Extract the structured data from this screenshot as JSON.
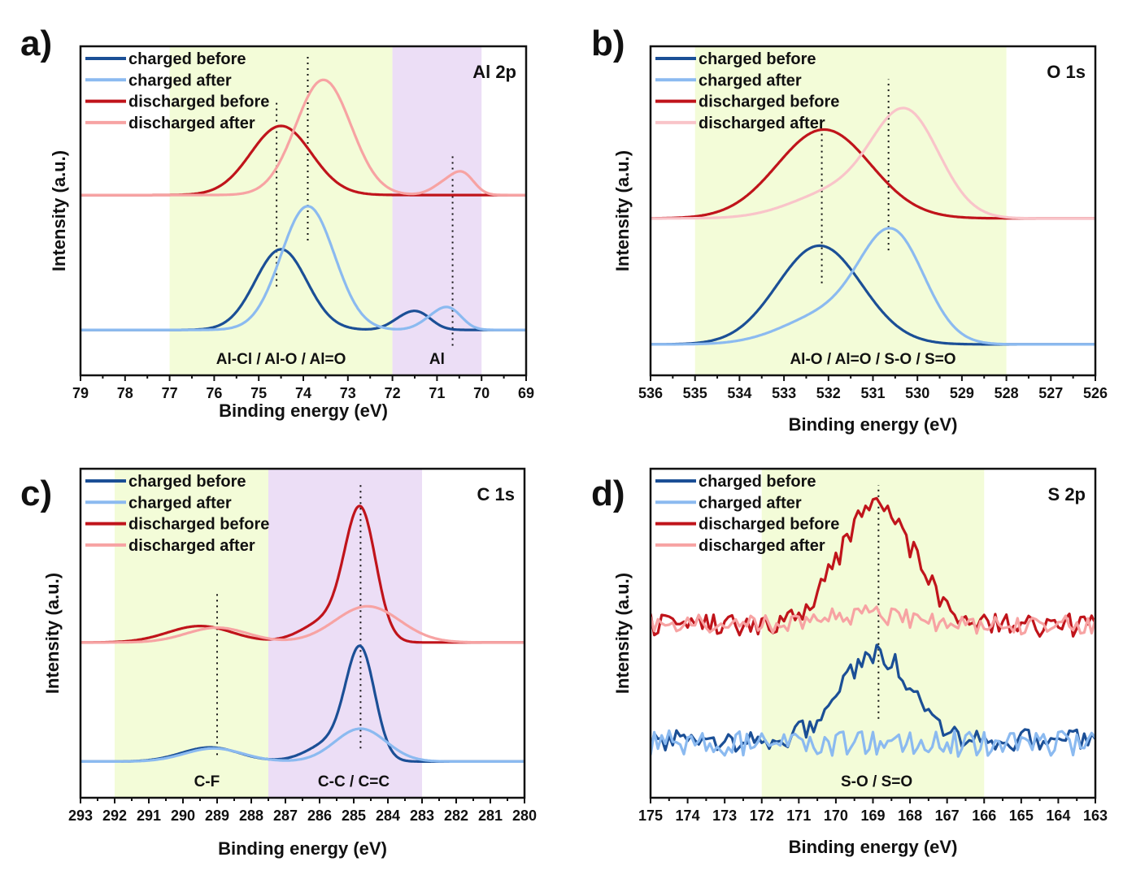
{
  "chart_data": [
    {
      "type": "line",
      "panel_label": "a)",
      "title": "Al 2p",
      "xlabel": "Binding energy (eV)",
      "ylabel": "Intensity (a.u.)",
      "xlim": [
        79,
        69
      ],
      "ylim": [
        0,
        100
      ],
      "xticks": [
        "79",
        "78",
        "77",
        "76",
        "75",
        "74",
        "73",
        "72",
        "71",
        "70",
        "69"
      ],
      "legend": {
        "placement": "top-left",
        "entries": [
          "charged before",
          "charged after",
          "discharged before",
          "discharged after"
        ]
      },
      "regions": [
        {
          "from": 77,
          "to": 72,
          "color": "#f3fcd8",
          "label": "Al-Cl / Al-O / Al=O",
          "label_x": 74.5
        },
        {
          "from": 72,
          "to": 70,
          "color": "#ecdef6",
          "label": "Al",
          "label_x": 71.0
        }
      ],
      "reference_lines": [
        {
          "x": 74.6,
          "y": [
            27,
            84
          ]
        },
        {
          "x": 73.9,
          "y": [
            41,
            97
          ]
        },
        {
          "x": 70.65,
          "y": [
            9,
            67
          ]
        }
      ],
      "series": [
        {
          "name": "charged before",
          "color": "#1b4f96",
          "baseline": 13.8,
          "peaks": [
            {
              "center": 74.5,
              "height": 24.5,
              "sigma": 0.58
            },
            {
              "center": 71.4,
              "height": 4.5,
              "sigma": 0.3
            },
            {
              "center": 71.8,
              "height": 2.5,
              "sigma": 0.3
            }
          ]
        },
        {
          "name": "charged after",
          "color": "#8bbaf0",
          "baseline": 13.8,
          "peaks": [
            {
              "center": 73.9,
              "height": 37.6,
              "sigma": 0.6
            },
            {
              "center": 70.7,
              "height": 5.5,
              "sigma": 0.28
            },
            {
              "center": 71.1,
              "height": 3,
              "sigma": 0.3
            }
          ]
        },
        {
          "name": "discharged before",
          "color": "#c0141b",
          "baseline": 54.8,
          "peaks": [
            {
              "center": 74.5,
              "height": 21,
              "sigma": 0.68
            }
          ]
        },
        {
          "name": "discharged after",
          "color": "#f7a3a3",
          "baseline": 54.8,
          "peaks": [
            {
              "center": 73.55,
              "height": 35,
              "sigma": 0.62
            },
            {
              "center": 70.4,
              "height": 5.5,
              "sigma": 0.25
            },
            {
              "center": 70.8,
              "height": 3.5,
              "sigma": 0.3
            }
          ]
        }
      ]
    },
    {
      "type": "line",
      "panel_label": "b)",
      "title": "O 1s",
      "xlabel": "Binding energy (eV)",
      "ylabel": "Intensity (a.u.)",
      "xlim": [
        536,
        526
      ],
      "ylim": [
        0,
        100
      ],
      "xticks": [
        "536",
        "535",
        "534",
        "533",
        "532",
        "531",
        "530",
        "529",
        "528",
        "527",
        "526"
      ],
      "legend": {
        "placement": "top-left",
        "entries": [
          "charged before",
          "charged after",
          "discharged before",
          "discharged after"
        ]
      },
      "regions": [
        {
          "from": 535,
          "to": 528,
          "color": "#f3fcd8",
          "label": "Al-O / Al=O / S-O / S=O",
          "label_x": 531.0
        }
      ],
      "reference_lines": [
        {
          "x": 532.15,
          "y": [
            28,
            75
          ]
        },
        {
          "x": 530.65,
          "y": [
            38,
            90
          ]
        }
      ],
      "series": [
        {
          "name": "charged before",
          "color": "#1b4f96",
          "baseline": 9.4,
          "peaks": [
            {
              "center": 532.2,
              "height": 30,
              "sigma": 0.95
            }
          ]
        },
        {
          "name": "charged after",
          "color": "#8bbaf0",
          "baseline": 9.4,
          "peaks": [
            {
              "center": 530.55,
              "height": 32,
              "sigma": 0.72
            },
            {
              "center": 532.0,
              "height": 9,
              "sigma": 1.0
            }
          ]
        },
        {
          "name": "discharged before",
          "color": "#c0141b",
          "baseline": 47.7,
          "peaks": [
            {
              "center": 532.1,
              "height": 27,
              "sigma": 1.05
            }
          ]
        },
        {
          "name": "discharged after",
          "color": "#f9c4c9",
          "baseline": 47.7,
          "peaks": [
            {
              "center": 530.25,
              "height": 31,
              "sigma": 0.75
            },
            {
              "center": 531.8,
              "height": 8,
              "sigma": 1.0
            }
          ]
        }
      ]
    },
    {
      "type": "line",
      "panel_label": "c)",
      "title": "C 1s",
      "xlabel": "Binding energy (eV)",
      "ylabel": "Intensity (a.u.)",
      "xlim": [
        293,
        280
      ],
      "ylim": [
        0,
        100
      ],
      "xticks": [
        "293",
        "292",
        "291",
        "290",
        "289",
        "288",
        "287",
        "286",
        "285",
        "284",
        "283",
        "282",
        "281",
        "280"
      ],
      "legend": {
        "placement": "top-left",
        "entries": [
          "charged before",
          "charged after",
          "discharged before",
          "discharged after"
        ]
      },
      "regions": [
        {
          "from": 292,
          "to": 287.5,
          "color": "#f3fcd8",
          "label": "C-F",
          "label_x": 289.3
        },
        {
          "from": 287.5,
          "to": 283,
          "color": "#ecdef6",
          "label": "C-C / C=C",
          "label_x": 285.0
        }
      ],
      "reference_lines": [
        {
          "x": 289.0,
          "y": [
            13,
            63
          ]
        },
        {
          "x": 284.8,
          "y": [
            15,
            95
          ]
        }
      ],
      "series": [
        {
          "name": "charged before",
          "color": "#1b4f96",
          "baseline": 11.0,
          "peaks": [
            {
              "center": 284.8,
              "height": 32,
              "sigma": 0.42
            },
            {
              "center": 285.6,
              "height": 6,
              "sigma": 0.7
            },
            {
              "center": 289.2,
              "height": 4.3,
              "sigma": 0.85
            }
          ]
        },
        {
          "name": "charged after",
          "color": "#8bbaf0",
          "baseline": 11.0,
          "peaks": [
            {
              "center": 284.8,
              "height": 10,
              "sigma": 0.75
            },
            {
              "center": 289.1,
              "height": 4,
              "sigma": 0.85
            }
          ]
        },
        {
          "name": "discharged before",
          "color": "#c0141b",
          "baseline": 47.2,
          "peaks": [
            {
              "center": 284.8,
              "height": 38,
              "sigma": 0.45
            },
            {
              "center": 285.7,
              "height": 7,
              "sigma": 0.75
            },
            {
              "center": 289.5,
              "height": 5,
              "sigma": 0.95
            }
          ]
        },
        {
          "name": "discharged after",
          "color": "#f7a3a3",
          "baseline": 47.2,
          "peaks": [
            {
              "center": 284.6,
              "height": 11,
              "sigma": 0.95
            },
            {
              "center": 289.0,
              "height": 4.5,
              "sigma": 0.9
            }
          ]
        }
      ]
    },
    {
      "type": "line",
      "panel_label": "d)",
      "title": "S 2p",
      "xlabel": "Binding energy (eV)",
      "ylabel": "Intensity (a.u.)",
      "xlim": [
        175,
        163
      ],
      "ylim": [
        0,
        100
      ],
      "xticks": [
        "175",
        "174",
        "173",
        "172",
        "171",
        "170",
        "169",
        "168",
        "167",
        "166",
        "165",
        "164",
        "163"
      ],
      "legend": {
        "placement": "top-left",
        "entries": [
          "charged before",
          "charged after",
          "discharged before",
          "discharged after"
        ]
      },
      "regions": [
        {
          "from": 172,
          "to": 166,
          "color": "#f3fcd8",
          "label": "S-O / S=O",
          "label_x": 168.9
        }
      ],
      "reference_lines": [
        {
          "x": 168.85,
          "y": [
            24,
            95
          ]
        }
      ],
      "series": [
        {
          "name": "charged before",
          "color": "#1b4f96",
          "baseline": 17.5,
          "noise": 3.5,
          "peaks": [
            {
              "center": 168.9,
              "height": 26,
              "sigma": 0.95
            }
          ]
        },
        {
          "name": "charged after",
          "color": "#8bbaf0",
          "baseline": 16.5,
          "noise": 4,
          "peaks": []
        },
        {
          "name": "discharged before",
          "color": "#c0141b",
          "baseline": 52.5,
          "noise": 3.5,
          "peaks": [
            {
              "center": 168.9,
              "height": 36,
              "sigma": 1.0
            }
          ]
        },
        {
          "name": "discharged after",
          "color": "#f7a3a3",
          "baseline": 52.5,
          "noise": 3,
          "peaks": [
            {
              "center": 169.0,
              "height": 3,
              "sigma": 1.2
            }
          ]
        }
      ]
    }
  ]
}
